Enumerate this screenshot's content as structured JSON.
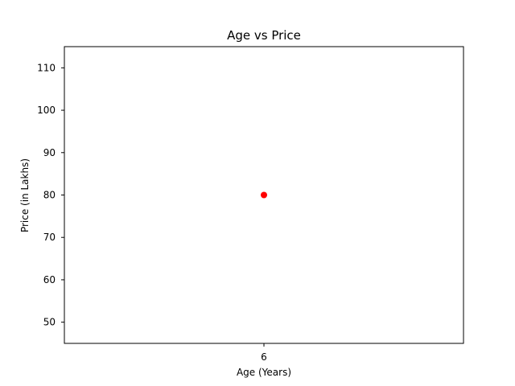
{
  "chart_data": {
    "type": "scatter",
    "title": "Age vs Price",
    "xlabel": "Age (Years)",
    "ylabel": "Price (in Lakhs)",
    "xticks": [
      6
    ],
    "yticks": [
      50,
      60,
      70,
      80,
      90,
      100,
      110
    ],
    "xlim": [
      5.945,
      6.055
    ],
    "ylim": [
      45,
      115
    ],
    "grid": false,
    "point_color": "#ff0000",
    "points": [
      {
        "x": 6,
        "y": 80
      }
    ]
  }
}
